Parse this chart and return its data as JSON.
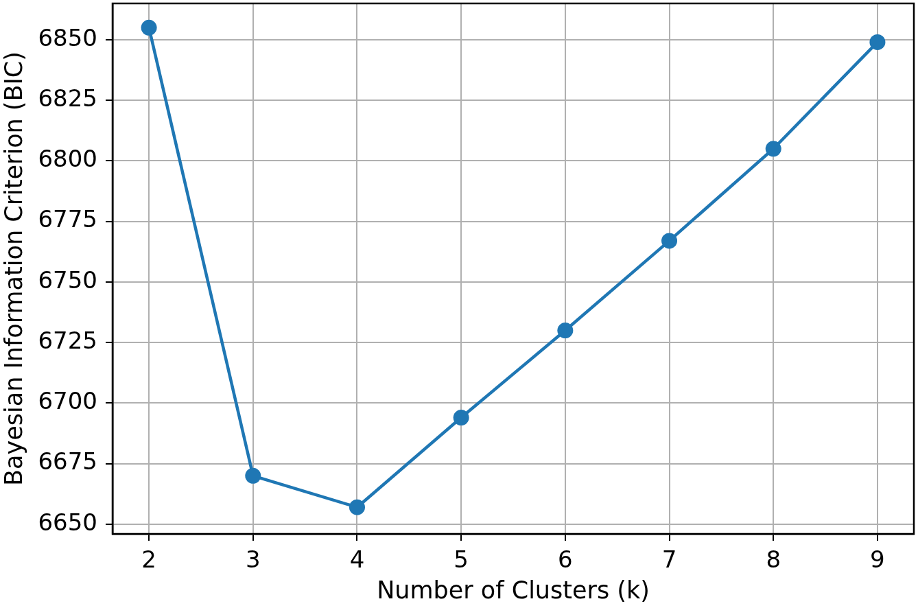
{
  "chart_data": {
    "type": "line",
    "xlabel": "Number of Clusters (k)",
    "ylabel": "Bayesian Information Criterion (BIC)",
    "x": [
      2,
      3,
      4,
      5,
      6,
      7,
      8,
      9
    ],
    "series": [
      {
        "color": "#1f77b4",
        "values": [
          6855,
          6670,
          6657,
          6694,
          6730,
          6767,
          6805,
          6849
        ]
      }
    ],
    "xlim": [
      1.65,
      9.35
    ],
    "ylim": [
      6646,
      6865
    ],
    "xticks": [
      2,
      3,
      4,
      5,
      6,
      7,
      8,
      9
    ],
    "yticks": [
      6650,
      6675,
      6700,
      6725,
      6750,
      6775,
      6800,
      6825,
      6850
    ],
    "grid": true,
    "marker": "circle",
    "line_style": "solid"
  }
}
